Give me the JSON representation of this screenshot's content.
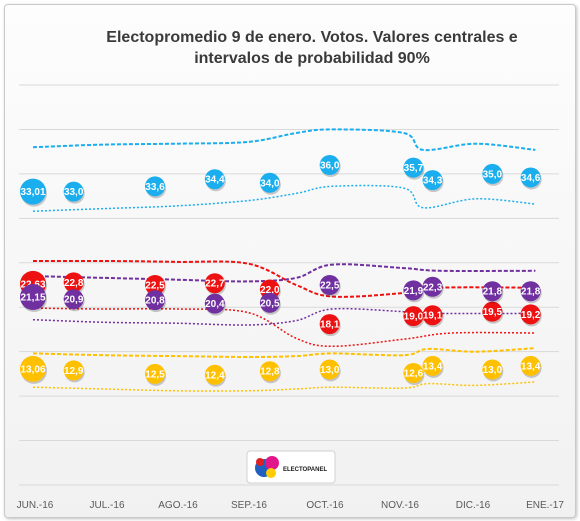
{
  "chart_data": {
    "type": "line",
    "title_lines": [
      "Electopromedio 9 de enero. Votos. Valores centrales e",
      "intervalos de probabilidad 90%"
    ],
    "xlabel": "",
    "ylabel": "",
    "x_ticks": [
      "JUN.-16",
      "JUL.-16",
      "AGO.-16",
      "SEP.-16",
      "OCT.-16",
      "NOV.-16",
      "DIC.-16",
      "ENE.-17"
    ],
    "ylim": [
      0,
      45
    ],
    "grid": true,
    "logo_text": "ELECTOPANEL",
    "series": [
      {
        "color": "#1aaeee",
        "points": [
          {
            "d": "2016-06-01",
            "v": 33.01,
            "label": "33,01"
          },
          {
            "d": "2016-06-18",
            "v": 33.0,
            "label": "33,0"
          },
          {
            "d": "2016-07-22",
            "v": 33.6,
            "label": "33,6"
          },
          {
            "d": "2016-08-16",
            "v": 34.4,
            "label": "34,4"
          },
          {
            "d": "2016-09-08",
            "v": 34.0,
            "label": "34,0"
          },
          {
            "d": "2016-10-03",
            "v": 36.0,
            "label": "36,0"
          },
          {
            "d": "2016-11-07",
            "v": 35.7,
            "label": "35,7"
          },
          {
            "d": "2016-11-15",
            "v": 34.3,
            "label": "34,3"
          },
          {
            "d": "2016-12-10",
            "v": 35.0,
            "label": "35,0"
          },
          {
            "d": "2016-12-26",
            "v": 34.6,
            "label": "34,6"
          }
        ],
        "upper": [
          [
            0,
            38.0
          ],
          [
            30,
            38.3
          ],
          [
            60,
            38.4
          ],
          [
            90,
            38.6
          ],
          [
            110,
            39.6
          ],
          [
            125,
            40.0
          ],
          [
            155,
            39.6
          ],
          [
            163,
            37.7
          ],
          [
            185,
            38.4
          ],
          [
            210,
            37.7
          ]
        ],
        "lower": [
          [
            0,
            30.8
          ],
          [
            30,
            31.1
          ],
          [
            60,
            31.4
          ],
          [
            90,
            32.0
          ],
          [
            110,
            32.8
          ],
          [
            125,
            33.6
          ],
          [
            155,
            33.4
          ],
          [
            163,
            31.2
          ],
          [
            185,
            32.2
          ],
          [
            210,
            31.6
          ]
        ]
      },
      {
        "color": "#ee1111",
        "points": [
          {
            "d": "2016-06-01",
            "v": 22.63,
            "label": "22,63"
          },
          {
            "d": "2016-06-18",
            "v": 22.8,
            "label": "22,8"
          },
          {
            "d": "2016-07-22",
            "v": 22.5,
            "label": "22,5"
          },
          {
            "d": "2016-08-16",
            "v": 22.7,
            "label": "22,7"
          },
          {
            "d": "2016-09-08",
            "v": 22.0,
            "label": "22,0"
          },
          {
            "d": "2016-10-03",
            "v": 18.1,
            "label": "18,1"
          },
          {
            "d": "2016-11-07",
            "v": 19.0,
            "label": "19,0"
          },
          {
            "d": "2016-11-15",
            "v": 19.1,
            "label": "19,1"
          },
          {
            "d": "2016-12-10",
            "v": 19.5,
            "label": "19,5"
          },
          {
            "d": "2016-12-26",
            "v": 19.2,
            "label": "19,2"
          }
        ],
        "upper": [
          [
            0,
            25.2
          ],
          [
            30,
            25.2
          ],
          [
            60,
            25.1
          ],
          [
            90,
            24.9
          ],
          [
            110,
            22.5
          ],
          [
            125,
            21.2
          ],
          [
            155,
            21.6
          ],
          [
            170,
            22.2
          ],
          [
            210,
            22.2
          ]
        ],
        "lower": [
          [
            0,
            19.9
          ],
          [
            30,
            19.8
          ],
          [
            60,
            19.8
          ],
          [
            90,
            19.4
          ],
          [
            110,
            16.5
          ],
          [
            125,
            15.6
          ],
          [
            155,
            16.4
          ],
          [
            175,
            17.1
          ],
          [
            210,
            17.1
          ]
        ]
      },
      {
        "color": "#7030a0",
        "points": [
          {
            "d": "2016-06-01",
            "v": 21.15,
            "label": "21,15"
          },
          {
            "d": "2016-06-18",
            "v": 20.9,
            "label": "20,9"
          },
          {
            "d": "2016-07-22",
            "v": 20.8,
            "label": "20,8"
          },
          {
            "d": "2016-08-16",
            "v": 20.4,
            "label": "20,4"
          },
          {
            "d": "2016-09-08",
            "v": 20.5,
            "label": "20,5"
          },
          {
            "d": "2016-10-03",
            "v": 22.5,
            "label": "22,5"
          },
          {
            "d": "2016-11-07",
            "v": 21.9,
            "label": "21,9"
          },
          {
            "d": "2016-11-15",
            "v": 22.3,
            "label": "22,3"
          },
          {
            "d": "2016-12-10",
            "v": 21.8,
            "label": "21,8"
          },
          {
            "d": "2016-12-26",
            "v": 21.8,
            "label": "21,8"
          }
        ],
        "upper": [
          [
            0,
            23.5
          ],
          [
            30,
            23.3
          ],
          [
            60,
            23.1
          ],
          [
            90,
            22.9
          ],
          [
            110,
            23.3
          ],
          [
            125,
            24.8
          ],
          [
            155,
            24.4
          ],
          [
            170,
            24.1
          ],
          [
            210,
            24.1
          ]
        ],
        "lower": [
          [
            0,
            18.6
          ],
          [
            30,
            18.3
          ],
          [
            60,
            18.2
          ],
          [
            90,
            18.0
          ],
          [
            110,
            18.5
          ],
          [
            125,
            19.8
          ],
          [
            155,
            19.5
          ],
          [
            170,
            19.3
          ],
          [
            210,
            19.3
          ]
        ]
      },
      {
        "color": "#ffc000",
        "points": [
          {
            "d": "2016-06-01",
            "v": 13.06,
            "label": "13,06"
          },
          {
            "d": "2016-06-18",
            "v": 12.9,
            "label": "12,9"
          },
          {
            "d": "2016-07-22",
            "v": 12.5,
            "label": "12,5"
          },
          {
            "d": "2016-08-16",
            "v": 12.4,
            "label": "12,4"
          },
          {
            "d": "2016-09-08",
            "v": 12.8,
            "label": "12,8"
          },
          {
            "d": "2016-10-03",
            "v": 13.0,
            "label": "13,0"
          },
          {
            "d": "2016-11-07",
            "v": 12.6,
            "label": "12,6"
          },
          {
            "d": "2016-11-15",
            "v": 13.4,
            "label": "13,4"
          },
          {
            "d": "2016-12-10",
            "v": 13.0,
            "label": "13,0"
          },
          {
            "d": "2016-12-26",
            "v": 13.4,
            "label": "13,4"
          }
        ],
        "upper": [
          [
            0,
            14.8
          ],
          [
            30,
            14.6
          ],
          [
            60,
            14.5
          ],
          [
            90,
            14.4
          ],
          [
            110,
            14.5
          ],
          [
            125,
            14.8
          ],
          [
            155,
            14.6
          ],
          [
            165,
            15.3
          ],
          [
            185,
            15.0
          ],
          [
            210,
            15.4
          ]
        ],
        "lower": [
          [
            0,
            11.0
          ],
          [
            30,
            10.8
          ],
          [
            60,
            10.6
          ],
          [
            90,
            10.6
          ],
          [
            110,
            10.8
          ],
          [
            125,
            11.0
          ],
          [
            155,
            10.9
          ],
          [
            165,
            11.4
          ],
          [
            185,
            11.2
          ],
          [
            210,
            11.6
          ]
        ]
      }
    ]
  }
}
